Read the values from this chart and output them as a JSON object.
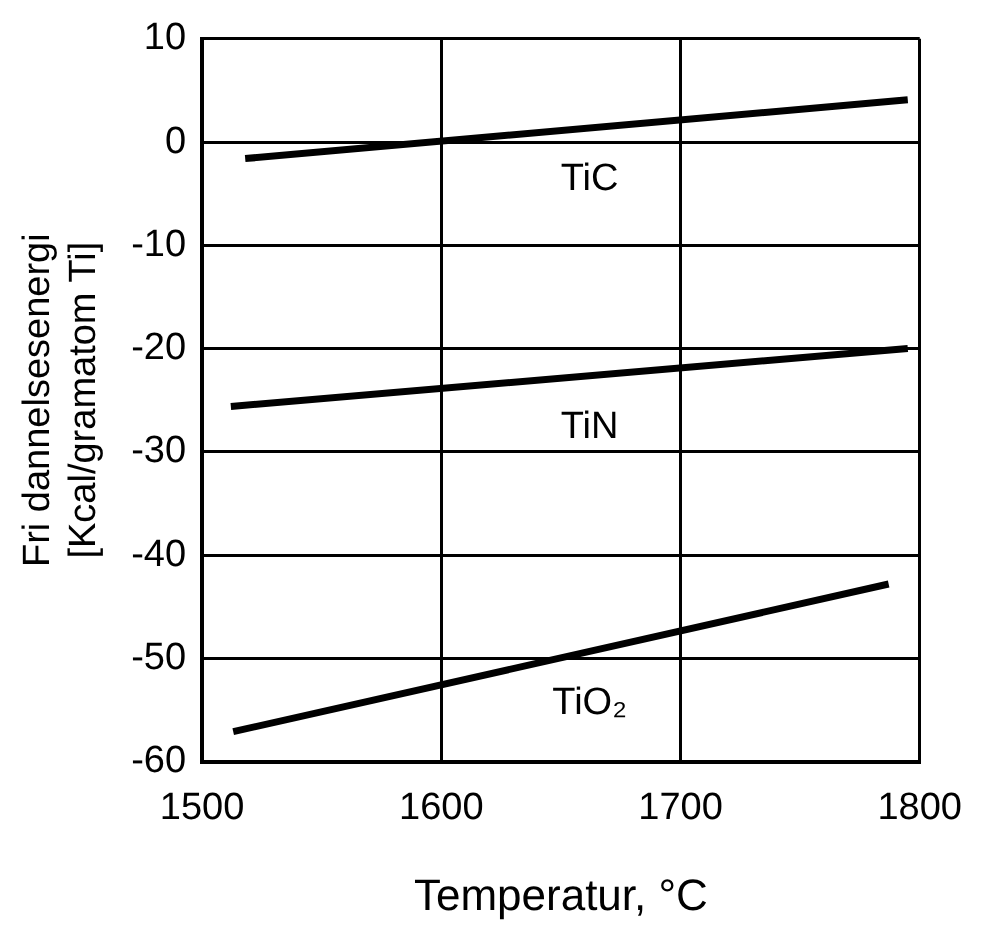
{
  "chart_data": {
    "type": "line",
    "xlabel": "Temperatur, °C",
    "ylabel": "Fri dannelsesenergi\n[Kcal/gramatom Ti]",
    "xlim": [
      1500,
      1800
    ],
    "xticks": [
      1500,
      1600,
      1700,
      1800
    ],
    "ylim": [
      -60,
      10
    ],
    "yticks": [
      -60,
      -50,
      -40,
      -30,
      -20,
      -10,
      0,
      10
    ],
    "grid": true,
    "legend": false,
    "marker": "none",
    "line_style": "solid",
    "series": [
      {
        "name": "TiC",
        "color": "#000000",
        "x": [
          1518,
          1795
        ],
        "values": [
          -1.6,
          4.1
        ]
      },
      {
        "name": "TiN",
        "color": "#000000",
        "x": [
          1512,
          1795
        ],
        "values": [
          -25.6,
          -20
        ]
      },
      {
        "name": "TiO₂",
        "color": "#000000",
        "x": [
          1513,
          1787
        ],
        "values": [
          -57.1,
          -42.8
        ]
      }
    ]
  }
}
